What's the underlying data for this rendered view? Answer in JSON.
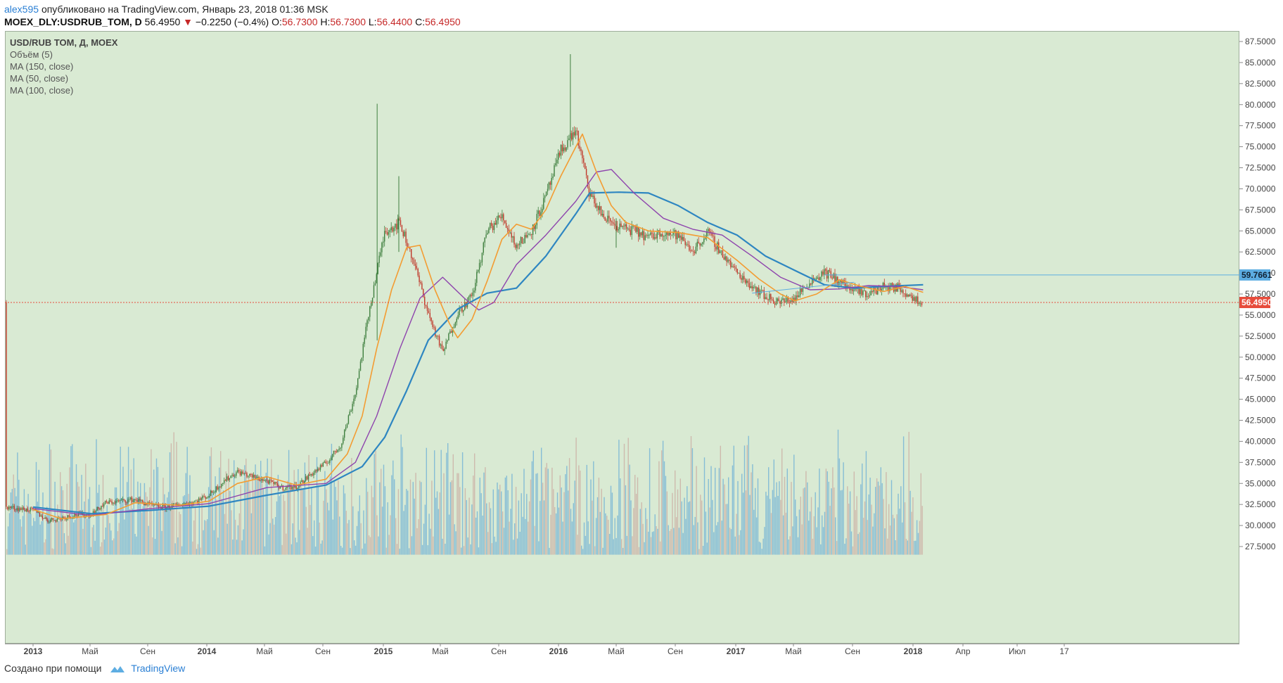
{
  "header": {
    "user": "alex595",
    "published": "опубликовано на TradingView.com, Январь 23, 2018 01:36 MSK"
  },
  "quote": {
    "symbol": "MOEX_DLY:USDRUB_TOM, D",
    "last": "56.4950",
    "arrow": "▼",
    "change": "−0.2250 (−0.4%)",
    "o_label": "O:",
    "o": "56.7300",
    "h_label": "H:",
    "h": "56.7300",
    "l_label": "L:",
    "l": "56.4400",
    "c_label": "C:",
    "c": "56.4950"
  },
  "legend": {
    "title": "USD/RUB TOM, Д, MOEX",
    "items": [
      "Объём (5)",
      "MA (150, close)",
      "MA (50, close)",
      "MA (100, close)"
    ]
  },
  "footer": {
    "text": "Создано при помощи",
    "brand": "TradingView"
  },
  "colors": {
    "background": "#d9ead3",
    "up_candle": "#3f7f3f",
    "down_candle": "#c0392b",
    "volume_blue": "#6aaed6",
    "volume_red": "#c9a9a0",
    "ma150": "#2e86c1",
    "ma50": "#f39c32",
    "ma100": "#8e44ad",
    "last_price": "#e74c3c",
    "level_line": "#5dade2"
  },
  "chart_data": {
    "type": "candlestick",
    "x_axis_labels": [
      "2013",
      "Май",
      "Сен",
      "2014",
      "Май",
      "Сен",
      "2015",
      "Май",
      "Сен",
      "2016",
      "Май",
      "Сен",
      "2017",
      "Май",
      "Сен",
      "2018",
      "Апр",
      "Июл",
      "17"
    ],
    "y_ticks": [
      "87.5000",
      "85.0000",
      "82.5000",
      "80.0000",
      "77.5000",
      "75.0000",
      "72.5000",
      "70.0000",
      "67.5000",
      "65.0000",
      "62.5000",
      "60.0000",
      "57.5000",
      "55.0000",
      "52.5000",
      "50.0000",
      "47.5000",
      "45.0000",
      "42.5000",
      "40.0000",
      "37.5000",
      "35.0000",
      "32.5000",
      "30.0000",
      "27.5000"
    ],
    "ylim": [
      26.5,
      89
    ],
    "price_markers": [
      {
        "label": "59.7661",
        "value": 59.7661,
        "color": "#5dade2"
      },
      {
        "label": "56.4950",
        "value": 56.495,
        "color": "#e74c3c"
      }
    ],
    "price_path": [
      [
        "2013-01-01",
        31.8
      ],
      [
        "2013-02-01",
        30.6
      ],
      [
        "2013-03-01",
        30.9
      ],
      [
        "2013-04-01",
        31.3
      ],
      [
        "2013-05-01",
        31.3
      ],
      [
        "2013-06-01",
        32.7
      ],
      [
        "2013-07-01",
        32.9
      ],
      [
        "2013-08-01",
        33.1
      ],
      [
        "2013-09-01",
        32.4
      ],
      [
        "2013-10-01",
        32.1
      ],
      [
        "2013-11-01",
        32.5
      ],
      [
        "2013-12-01",
        32.8
      ],
      [
        "2014-01-01",
        33.6
      ],
      [
        "2014-02-01",
        35.3
      ],
      [
        "2014-03-01",
        36.4
      ],
      [
        "2014-04-01",
        35.8
      ],
      [
        "2014-05-01",
        35.3
      ],
      [
        "2014-06-01",
        34.5
      ],
      [
        "2014-07-01",
        34.6
      ],
      [
        "2014-08-01",
        36.1
      ],
      [
        "2014-09-01",
        37.4
      ],
      [
        "2014-10-01",
        39.5
      ],
      [
        "2014-11-01",
        45.8
      ],
      [
        "2014-12-01",
        56.0
      ],
      [
        "2015-01-01",
        65.0
      ],
      [
        "2015-02-01",
        66.0
      ],
      [
        "2015-03-01",
        61.5
      ],
      [
        "2015-04-01",
        55.2
      ],
      [
        "2015-05-01",
        50.5
      ],
      [
        "2015-06-01",
        55.3
      ],
      [
        "2015-07-01",
        57.2
      ],
      [
        "2015-08-01",
        65.0
      ],
      [
        "2015-09-01",
        66.8
      ],
      [
        "2015-10-01",
        63.2
      ],
      [
        "2015-11-01",
        65.0
      ],
      [
        "2015-12-01",
        69.0
      ],
      [
        "2016-01-01",
        74.5
      ],
      [
        "2016-02-01",
        77.0
      ],
      [
        "2016-03-01",
        69.3
      ],
      [
        "2016-04-01",
        66.5
      ],
      [
        "2016-05-01",
        65.5
      ],
      [
        "2016-06-01",
        65.0
      ],
      [
        "2016-07-01",
        64.2
      ],
      [
        "2016-08-01",
        64.9
      ],
      [
        "2016-09-01",
        64.4
      ],
      [
        "2016-10-01",
        62.6
      ],
      [
        "2016-11-01",
        64.8
      ],
      [
        "2016-12-01",
        62.3
      ],
      [
        "2017-01-01",
        60.0
      ],
      [
        "2017-02-01",
        58.5
      ],
      [
        "2017-03-01",
        57.2
      ],
      [
        "2017-04-01",
        56.5
      ],
      [
        "2017-05-01",
        57.0
      ],
      [
        "2017-06-01",
        59.0
      ],
      [
        "2017-07-01",
        60.1
      ],
      [
        "2017-08-01",
        59.0
      ],
      [
        "2017-09-01",
        57.8
      ],
      [
        "2017-10-01",
        57.5
      ],
      [
        "2017-11-01",
        58.4
      ],
      [
        "2017-12-01",
        58.2
      ],
      [
        "2018-01-01",
        57.2
      ],
      [
        "2018-01-22",
        56.5
      ]
    ],
    "spikes": [
      [
        "2014-12-16",
        80.1,
        52.0
      ],
      [
        "2015-01-30",
        71.5,
        62.5
      ],
      [
        "2016-01-21",
        86.0,
        75.0
      ],
      [
        "2016-04-25",
        66.5,
        63.0
      ]
    ],
    "ma50": [
      [
        "2013-01-01",
        31.9
      ],
      [
        "2013-03-01",
        30.8
      ],
      [
        "2013-06-01",
        31.3
      ],
      [
        "2013-08-01",
        32.7
      ],
      [
        "2013-11-01",
        32.4
      ],
      [
        "2014-01-01",
        32.9
      ],
      [
        "2014-03-01",
        35.0
      ],
      [
        "2014-05-01",
        35.8
      ],
      [
        "2014-07-01",
        34.8
      ],
      [
        "2014-09-01",
        35.5
      ],
      [
        "2014-10-15",
        38.5
      ],
      [
        "2014-11-15",
        43.0
      ],
      [
        "2014-12-15",
        51.0
      ],
      [
        "2015-01-15",
        58.0
      ],
      [
        "2015-02-15",
        63.0
      ],
      [
        "2015-03-15",
        63.3
      ],
      [
        "2015-04-15",
        58.0
      ],
      [
        "2015-05-15",
        54.0
      ],
      [
        "2015-06-01",
        52.3
      ],
      [
        "2015-07-01",
        54.5
      ],
      [
        "2015-08-01",
        59.0
      ],
      [
        "2015-09-01",
        64.0
      ],
      [
        "2015-10-01",
        65.8
      ],
      [
        "2015-11-01",
        65.2
      ],
      [
        "2015-12-01",
        67.5
      ],
      [
        "2016-01-01",
        71.5
      ],
      [
        "2016-02-15",
        76.5
      ],
      [
        "2016-03-15",
        72.0
      ],
      [
        "2016-04-15",
        68.0
      ],
      [
        "2016-05-15",
        66.0
      ],
      [
        "2016-07-01",
        65.0
      ],
      [
        "2016-09-01",
        64.8
      ],
      [
        "2016-11-01",
        64.2
      ],
      [
        "2017-01-01",
        61.5
      ],
      [
        "2017-02-15",
        59.3
      ],
      [
        "2017-04-01",
        57.5
      ],
      [
        "2017-05-01",
        56.7
      ],
      [
        "2017-06-15",
        57.5
      ],
      [
        "2017-08-01",
        59.2
      ],
      [
        "2017-09-15",
        58.4
      ],
      [
        "2017-11-01",
        57.8
      ],
      [
        "2017-12-15",
        58.4
      ],
      [
        "2018-01-22",
        57.7
      ]
    ],
    "ma100": [
      [
        "2013-01-01",
        32.0
      ],
      [
        "2013-05-01",
        31.2
      ],
      [
        "2013-09-01",
        32.0
      ],
      [
        "2014-01-01",
        32.6
      ],
      [
        "2014-05-01",
        34.5
      ],
      [
        "2014-09-01",
        35.0
      ],
      [
        "2014-11-01",
        37.5
      ],
      [
        "2014-12-15",
        43.0
      ],
      [
        "2015-02-01",
        51.0
      ],
      [
        "2015-03-15",
        57.0
      ],
      [
        "2015-05-01",
        59.5
      ],
      [
        "2015-06-15",
        57.0
      ],
      [
        "2015-07-15",
        55.6
      ],
      [
        "2015-08-15",
        56.5
      ],
      [
        "2015-10-01",
        61.0
      ],
      [
        "2015-12-01",
        64.5
      ],
      [
        "2016-02-01",
        68.5
      ],
      [
        "2016-03-15",
        72.0
      ],
      [
        "2016-04-15",
        72.3
      ],
      [
        "2016-06-01",
        69.5
      ],
      [
        "2016-08-01",
        66.5
      ],
      [
        "2016-10-01",
        65.2
      ],
      [
        "2016-12-01",
        64.5
      ],
      [
        "2017-02-01",
        62.0
      ],
      [
        "2017-04-01",
        59.5
      ],
      [
        "2017-06-01",
        58.0
      ],
      [
        "2017-08-01",
        58.1
      ],
      [
        "2017-10-01",
        58.5
      ],
      [
        "2017-12-01",
        58.4
      ],
      [
        "2018-01-22",
        58.0
      ]
    ],
    "ma150": [
      [
        "2013-01-01",
        32.2
      ],
      [
        "2013-05-01",
        31.4
      ],
      [
        "2013-09-01",
        31.8
      ],
      [
        "2014-01-01",
        32.3
      ],
      [
        "2014-05-01",
        33.6
      ],
      [
        "2014-09-01",
        34.8
      ],
      [
        "2014-11-15",
        37.0
      ],
      [
        "2015-01-01",
        40.5
      ],
      [
        "2015-02-15",
        46.0
      ],
      [
        "2015-04-01",
        52.0
      ],
      [
        "2015-06-01",
        55.7
      ],
      [
        "2015-08-01",
        57.6
      ],
      [
        "2015-10-01",
        58.2
      ],
      [
        "2015-12-01",
        62.0
      ],
      [
        "2016-02-01",
        67.0
      ],
      [
        "2016-03-01",
        69.5
      ],
      [
        "2016-05-01",
        69.6
      ],
      [
        "2016-07-01",
        69.5
      ],
      [
        "2016-09-01",
        68.0
      ],
      [
        "2016-11-01",
        66.0
      ],
      [
        "2017-01-01",
        64.5
      ],
      [
        "2017-03-01",
        62.0
      ],
      [
        "2017-05-01",
        60.3
      ],
      [
        "2017-07-01",
        58.6
      ],
      [
        "2017-09-01",
        58.2
      ],
      [
        "2017-11-01",
        58.4
      ],
      [
        "2018-01-22",
        58.6
      ]
    ],
    "level_line_segment": [
      [
        "2017-02-01",
        57.6
      ],
      [
        "2017-09-01",
        58.9
      ]
    ],
    "volume_band": [
      27.2,
      42.2
    ]
  }
}
